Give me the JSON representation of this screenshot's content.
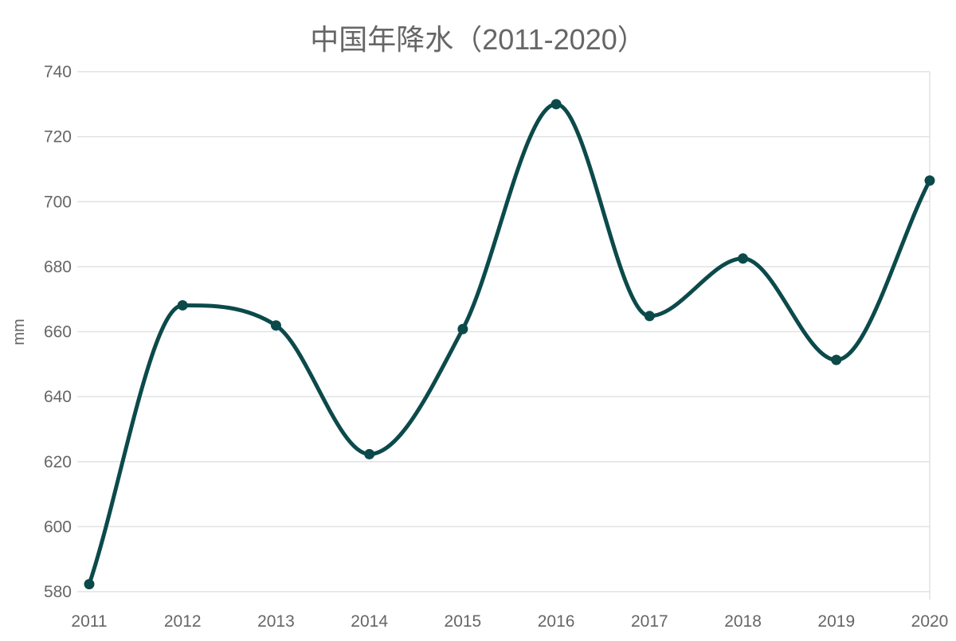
{
  "chart_data": {
    "type": "line",
    "title": "中国年降水（2011-2020）",
    "xlabel": "",
    "ylabel": "mm",
    "categories": [
      "2011",
      "2012",
      "2013",
      "2014",
      "2015",
      "2016",
      "2017",
      "2018",
      "2019",
      "2020"
    ],
    "series": [
      {
        "values": [
          582.3,
          668.1,
          661.9,
          622.3,
          660.8,
          730.0,
          664.8,
          682.5,
          651.3,
          706.5
        ]
      }
    ],
    "yticks": [
      580,
      600,
      620,
      640,
      660,
      680,
      700,
      720,
      740
    ],
    "ylim": [
      580,
      740
    ],
    "grid": true,
    "legend": "none",
    "smooth": true,
    "line_color": "#0c4a4a",
    "grid_color": "#e2e2e2",
    "text_color": "#666666"
  }
}
